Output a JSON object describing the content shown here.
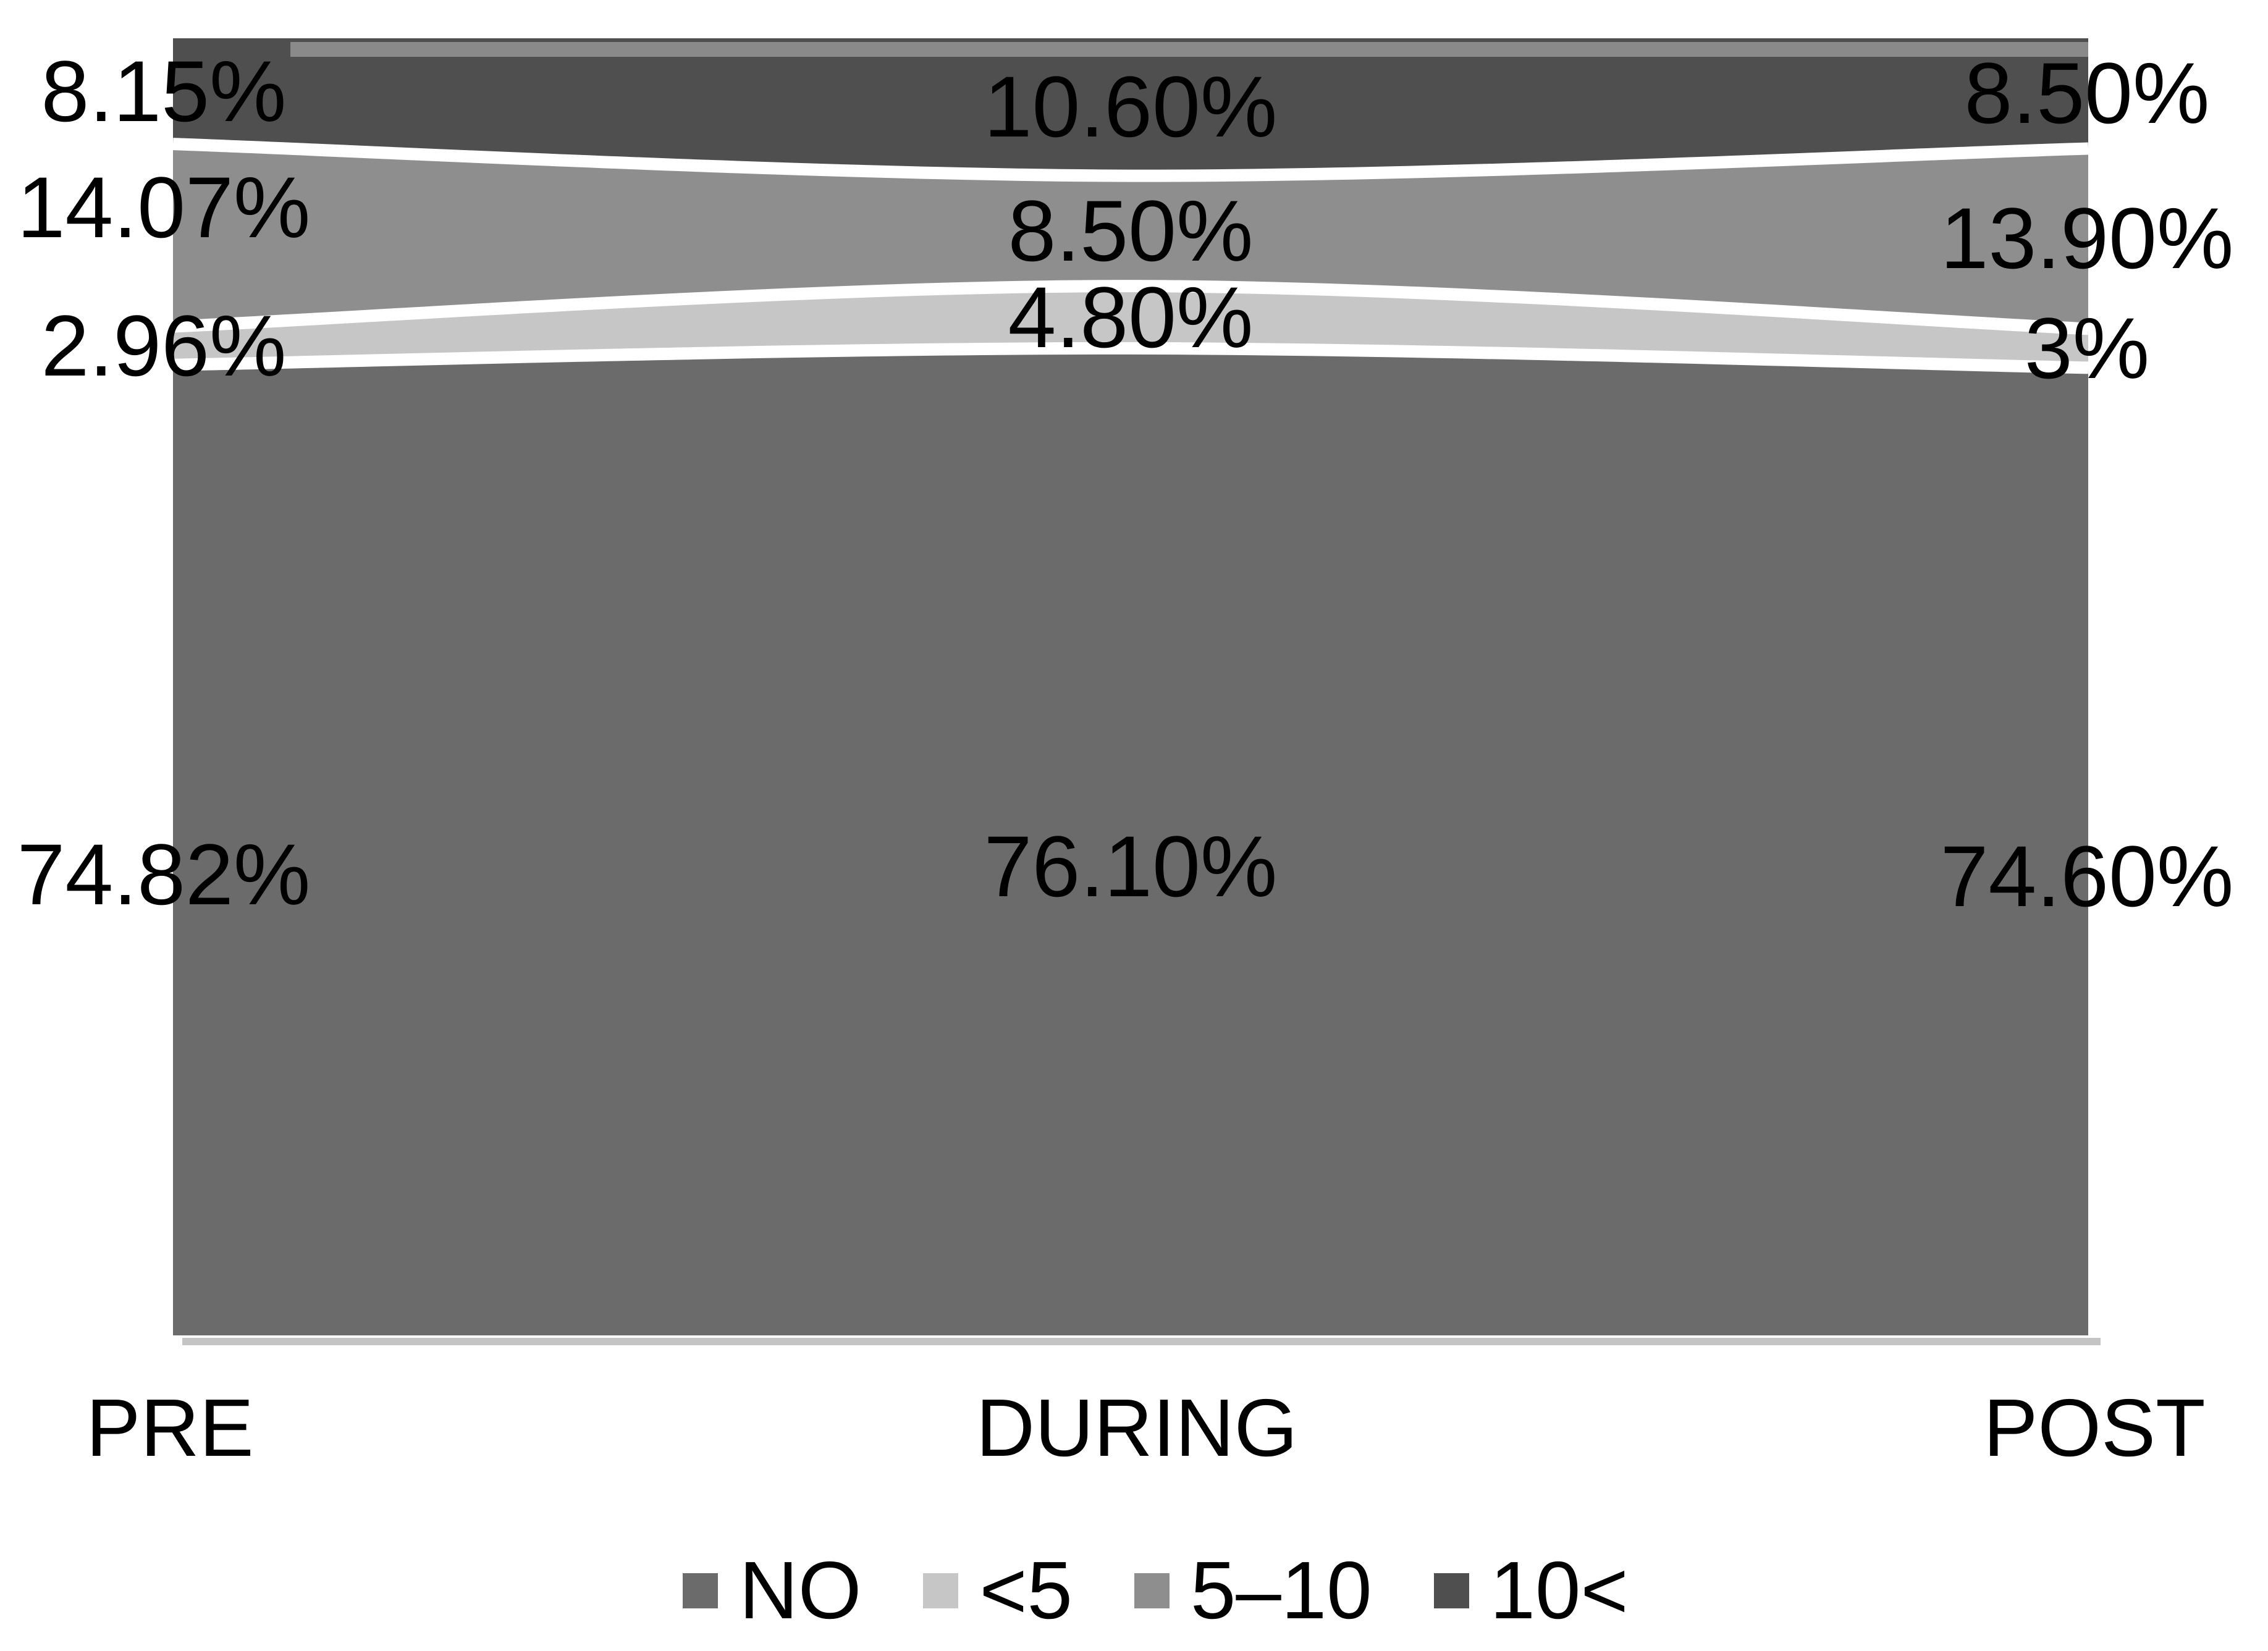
{
  "figure": {
    "background": "#ffffff",
    "text_color": "#000000"
  },
  "chart_data": {
    "type": "area",
    "subtype": "100-percent-stacked",
    "title": "",
    "xlabel": "",
    "ylabel": "",
    "ylim": [
      0,
      100
    ],
    "grid": false,
    "legend_position": "bottom",
    "separator_color": "#ffffff",
    "top_edge_color": "#8a8a8a",
    "bottom_shadow_color": "#c4c4c4",
    "categories": [
      "PRE",
      "DURING",
      "POST"
    ],
    "series": [
      {
        "name": "NO",
        "color": "#6b6b6b",
        "values": [
          74.82,
          76.1,
          74.6
        ],
        "value_labels": [
          "74.82%",
          "76.10%",
          "74.60%"
        ]
      },
      {
        "name": "<5",
        "color": "#c6c6c6",
        "values": [
          2.96,
          4.8,
          3.0
        ],
        "value_labels": [
          "2.96%",
          "4.80%",
          "3%"
        ]
      },
      {
        "name": "5–10",
        "color": "#8e8e8e",
        "values": [
          14.07,
          8.5,
          13.9
        ],
        "value_labels": [
          "14.07%",
          "8.50%",
          "13.90%"
        ]
      },
      {
        "name": "10<",
        "color": "#4f4f4f",
        "values": [
          8.15,
          10.6,
          8.5
        ],
        "value_labels": [
          "8.15%",
          "10.60%",
          "8.50%"
        ]
      }
    ],
    "stack_order_top_to_bottom": [
      "10<",
      "5–10",
      "<5",
      "NO"
    ]
  },
  "legend": {
    "items": [
      {
        "label": "NO",
        "color": "#6b6b6b"
      },
      {
        "label": "<5",
        "color": "#c6c6c6"
      },
      {
        "label": "5–10",
        "color": "#8e8e8e"
      },
      {
        "label": "10<",
        "color": "#4f4f4f"
      }
    ]
  }
}
